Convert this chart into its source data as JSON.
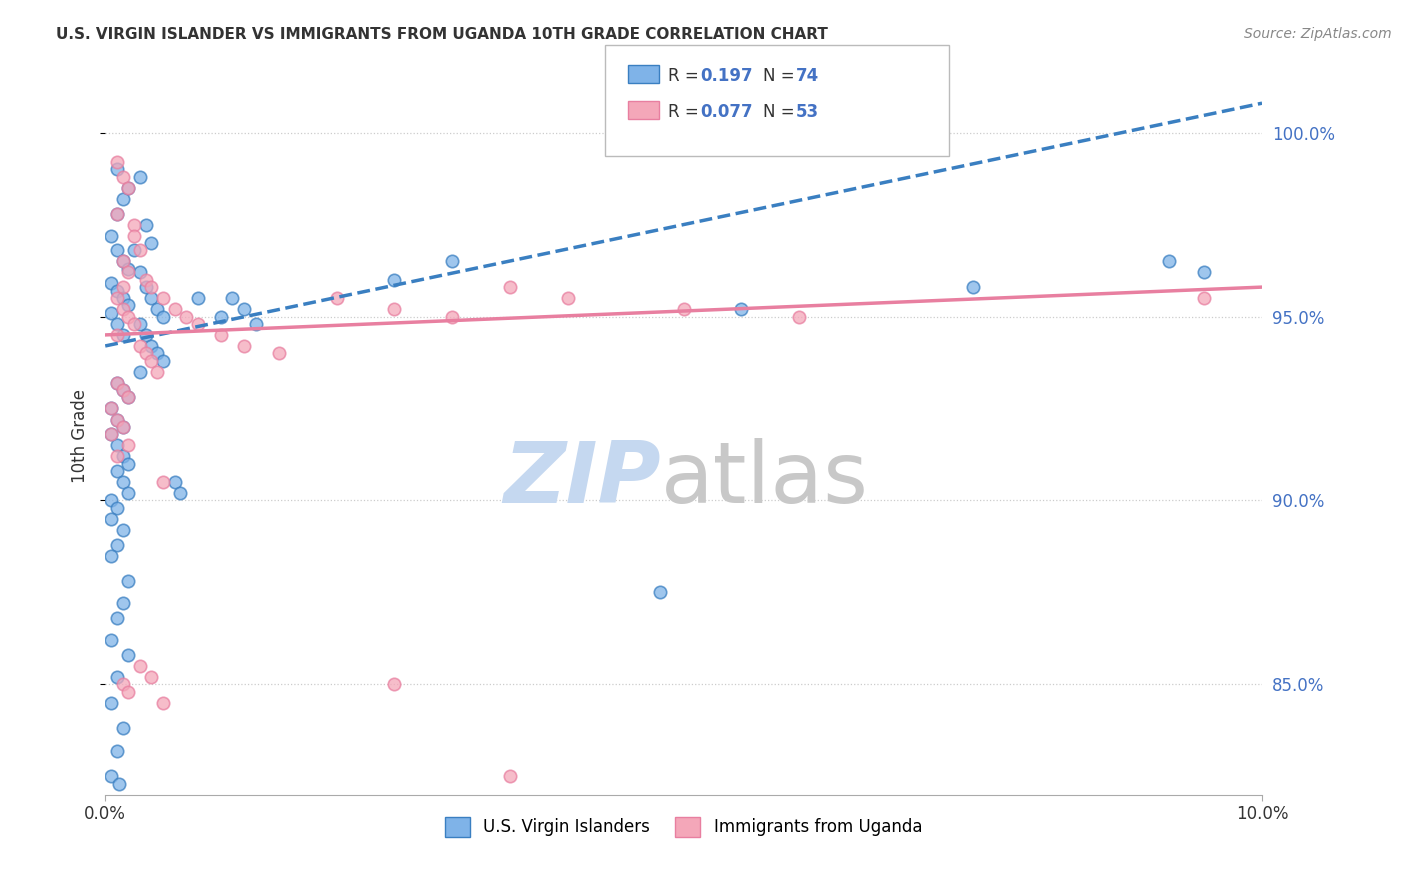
{
  "title": "U.S. VIRGIN ISLANDER VS IMMIGRANTS FROM UGANDA 10TH GRADE CORRELATION CHART",
  "source": "Source: ZipAtlas.com",
  "ylabel": "10th Grade",
  "xlim": [
    0.0,
    10.0
  ],
  "ylim": [
    82.0,
    101.5
  ],
  "yticks": [
    85.0,
    90.0,
    95.0,
    100.0
  ],
  "ytick_labels": [
    "85.0%",
    "90.0%",
    "95.0%",
    "100.0%"
  ],
  "blue_color": "#7fb3e8",
  "pink_color": "#f4a7b9",
  "blue_line_color": "#3a7fc1",
  "pink_line_color": "#e87fa0",
  "blue_scatter": [
    [
      0.1,
      99.0
    ],
    [
      0.15,
      98.2
    ],
    [
      0.2,
      98.5
    ],
    [
      0.1,
      97.8
    ],
    [
      0.05,
      97.2
    ],
    [
      0.1,
      96.8
    ],
    [
      0.15,
      96.5
    ],
    [
      0.2,
      96.3
    ],
    [
      0.05,
      95.9
    ],
    [
      0.1,
      95.7
    ],
    [
      0.15,
      95.5
    ],
    [
      0.2,
      95.3
    ],
    [
      0.05,
      95.1
    ],
    [
      0.1,
      94.8
    ],
    [
      0.15,
      94.5
    ],
    [
      0.3,
      98.8
    ],
    [
      0.35,
      97.5
    ],
    [
      0.4,
      97.0
    ],
    [
      0.25,
      96.8
    ],
    [
      0.3,
      96.2
    ],
    [
      0.35,
      95.8
    ],
    [
      0.4,
      95.5
    ],
    [
      0.45,
      95.2
    ],
    [
      0.5,
      95.0
    ],
    [
      0.3,
      94.8
    ],
    [
      0.35,
      94.5
    ],
    [
      0.4,
      94.2
    ],
    [
      0.45,
      94.0
    ],
    [
      0.5,
      93.8
    ],
    [
      0.3,
      93.5
    ],
    [
      0.1,
      93.2
    ],
    [
      0.15,
      93.0
    ],
    [
      0.2,
      92.8
    ],
    [
      0.05,
      92.5
    ],
    [
      0.1,
      92.2
    ],
    [
      0.15,
      92.0
    ],
    [
      0.05,
      91.8
    ],
    [
      0.1,
      91.5
    ],
    [
      0.15,
      91.2
    ],
    [
      0.2,
      91.0
    ],
    [
      0.1,
      90.8
    ],
    [
      0.15,
      90.5
    ],
    [
      0.2,
      90.2
    ],
    [
      0.05,
      90.0
    ],
    [
      0.1,
      89.8
    ],
    [
      0.05,
      89.5
    ],
    [
      0.15,
      89.2
    ],
    [
      0.1,
      88.8
    ],
    [
      0.05,
      88.5
    ],
    [
      0.2,
      87.8
    ],
    [
      0.15,
      87.2
    ],
    [
      0.1,
      86.8
    ],
    [
      0.05,
      86.2
    ],
    [
      0.2,
      85.8
    ],
    [
      0.1,
      85.2
    ],
    [
      0.05,
      84.5
    ],
    [
      0.15,
      83.8
    ],
    [
      0.1,
      83.2
    ],
    [
      0.05,
      82.5
    ],
    [
      0.12,
      82.3
    ],
    [
      0.6,
      90.5
    ],
    [
      0.65,
      90.2
    ],
    [
      1.1,
      95.5
    ],
    [
      1.2,
      95.2
    ],
    [
      1.3,
      94.8
    ],
    [
      4.8,
      87.5
    ],
    [
      0.8,
      95.5
    ],
    [
      1.0,
      95.0
    ],
    [
      2.5,
      96.0
    ],
    [
      3.0,
      96.5
    ],
    [
      5.5,
      95.2
    ],
    [
      7.5,
      95.8
    ],
    [
      9.2,
      96.5
    ],
    [
      9.5,
      96.2
    ]
  ],
  "pink_scatter": [
    [
      0.1,
      99.2
    ],
    [
      0.15,
      98.8
    ],
    [
      0.2,
      98.5
    ],
    [
      0.1,
      97.8
    ],
    [
      0.25,
      97.5
    ],
    [
      0.3,
      96.8
    ],
    [
      0.15,
      96.5
    ],
    [
      0.2,
      96.2
    ],
    [
      0.35,
      96.0
    ],
    [
      0.4,
      95.8
    ],
    [
      0.1,
      95.5
    ],
    [
      0.15,
      95.2
    ],
    [
      0.2,
      95.0
    ],
    [
      0.25,
      94.8
    ],
    [
      0.1,
      94.5
    ],
    [
      0.3,
      94.2
    ],
    [
      0.35,
      94.0
    ],
    [
      0.4,
      93.8
    ],
    [
      0.45,
      93.5
    ],
    [
      0.1,
      93.2
    ],
    [
      0.15,
      93.0
    ],
    [
      0.2,
      92.8
    ],
    [
      0.05,
      92.5
    ],
    [
      0.1,
      92.2
    ],
    [
      0.15,
      92.0
    ],
    [
      0.05,
      91.8
    ],
    [
      0.2,
      91.5
    ],
    [
      0.1,
      91.2
    ],
    [
      0.5,
      95.5
    ],
    [
      0.6,
      95.2
    ],
    [
      0.7,
      95.0
    ],
    [
      0.8,
      94.8
    ],
    [
      1.0,
      94.5
    ],
    [
      1.2,
      94.2
    ],
    [
      1.5,
      94.0
    ],
    [
      2.0,
      95.5
    ],
    [
      2.5,
      95.2
    ],
    [
      3.0,
      95.0
    ],
    [
      3.5,
      95.8
    ],
    [
      4.0,
      95.5
    ],
    [
      5.0,
      95.2
    ],
    [
      6.0,
      95.0
    ],
    [
      0.3,
      85.5
    ],
    [
      0.4,
      85.2
    ],
    [
      0.15,
      85.0
    ],
    [
      0.2,
      84.8
    ],
    [
      3.5,
      82.5
    ],
    [
      0.5,
      84.5
    ],
    [
      2.5,
      85.0
    ],
    [
      0.15,
      95.8
    ],
    [
      0.25,
      97.2
    ],
    [
      9.5,
      95.5
    ],
    [
      0.5,
      90.5
    ]
  ],
  "blue_trendline": [
    [
      0.0,
      94.2
    ],
    [
      10.0,
      100.8
    ]
  ],
  "pink_trendline": [
    [
      0.0,
      94.5
    ],
    [
      10.0,
      95.8
    ]
  ],
  "watermark_zip": "ZIP",
  "watermark_atlas": "atlas",
  "watermark_color_zip": "#c5d8f0",
  "watermark_color_atlas": "#c8c8c8",
  "background_color": "#ffffff",
  "grid_color": "#cccccc"
}
